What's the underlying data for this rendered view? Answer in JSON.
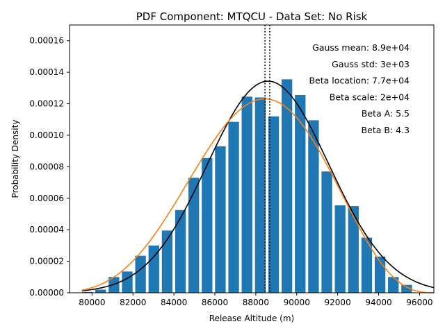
{
  "chart_data": {
    "type": "bar",
    "title": "PDF Component: MTQCU - Data Set: No Risk",
    "xlabel": "Release Altitude (m)",
    "ylabel": "Probability Density",
    "xlim": [
      78900,
      96700
    ],
    "ylim": [
      0,
      0.00017
    ],
    "xticks": [
      80000,
      82000,
      84000,
      86000,
      88000,
      90000,
      92000,
      94000,
      96000
    ],
    "xtick_labels": [
      "80000",
      "82000",
      "84000",
      "86000",
      "88000",
      "90000",
      "92000",
      "94000",
      "96000"
    ],
    "yticks": [
      0,
      2e-05,
      4e-05,
      6e-05,
      8e-05,
      0.0001,
      0.00012,
      0.00014,
      0.00016
    ],
    "ytick_labels": [
      "0.00000",
      "0.00002",
      "0.00004",
      "0.00006",
      "0.00008",
      "0.00010",
      "0.00012",
      "0.00014",
      "0.00016"
    ],
    "bar_width": 520,
    "bars": {
      "x": [
        79770,
        80420,
        81070,
        81720,
        82370,
        83020,
        83670,
        84320,
        84970,
        85620,
        86270,
        86920,
        87570,
        88220,
        88870,
        89520,
        90170,
        90820,
        91470,
        92120,
        92770,
        93420,
        94070,
        94720,
        95370
      ],
      "values": [
        5e-07,
        2e-06,
        1e-05,
        1.35e-05,
        2.35e-05,
        3e-05,
        3.95e-05,
        5.25e-05,
        7.3e-05,
        8.55e-05,
        9.3e-05,
        0.0001085,
        0.0001245,
        0.000124,
        0.000112,
        0.0001355,
        0.0001255,
        0.0001095,
        7.7e-05,
        5.55e-05,
        5.5e-05,
        3.5e-05,
        2.3e-05,
        1e-05,
        5e-06
      ]
    },
    "series": [
      {
        "name": "Gauss",
        "color": "#000000",
        "mean": 88600,
        "std": 2970
      },
      {
        "name": "Beta",
        "color": "#ff7f0e",
        "location": 76900,
        "scale": 20000,
        "a": 5.5,
        "b": 4.3
      }
    ],
    "vlines": [
      88450,
      88680
    ],
    "bar_color": "#1f77b4",
    "annotations": [
      "Gauss mean: 8.9e+04",
      "Gauss std: 3e+03",
      "Beta location: 7.7e+04",
      "Beta scale: 2e+04",
      "Beta A: 5.5",
      "Beta B: 4.3"
    ],
    "grid": false
  }
}
